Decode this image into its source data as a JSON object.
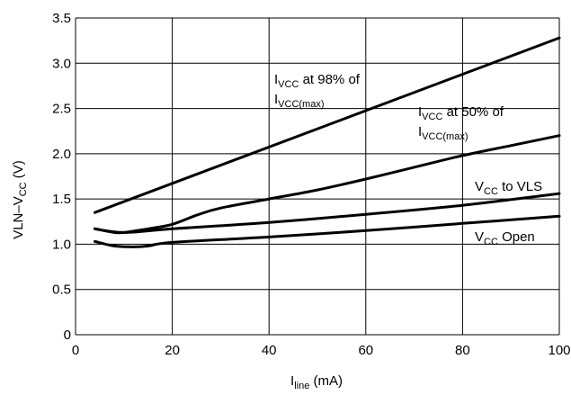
{
  "chart_data": {
    "type": "line",
    "xlabel": {
      "main": "I",
      "sub": "line",
      "rest": " (mA)"
    },
    "ylabel": {
      "main": "VLN–V",
      "sub": "CC",
      "rest": " (V)"
    },
    "xlim": [
      0,
      100
    ],
    "ylim": [
      0,
      3.5
    ],
    "x_ticks": [
      0,
      20,
      40,
      60,
      80,
      100
    ],
    "x_tick_labels": [
      "0",
      "20",
      "40",
      "60",
      "80",
      "100"
    ],
    "y_ticks": [
      0,
      0.5,
      1.0,
      1.5,
      2.0,
      2.5,
      3.0,
      3.5
    ],
    "y_tick_labels": [
      "0",
      "0.5",
      "1.0",
      "1.5",
      "2.0",
      "2.5",
      "3.0",
      "3.5"
    ],
    "grid": true,
    "series": [
      {
        "name": "I_VCC at 98% of I_VCC(max)",
        "x": [
          4,
          100
        ],
        "y": [
          1.35,
          3.28
        ]
      },
      {
        "name": "I_VCC at 50% of I_VCC(max)",
        "x": [
          4,
          8,
          10,
          15,
          20,
          25,
          30,
          40,
          50,
          60,
          70,
          80,
          90,
          100
        ],
        "y": [
          1.17,
          1.13,
          1.13,
          1.17,
          1.22,
          1.32,
          1.4,
          1.5,
          1.6,
          1.72,
          1.85,
          1.98,
          2.09,
          2.2
        ]
      },
      {
        "name": "V_CC to VLS",
        "x": [
          4,
          10,
          20,
          40,
          60,
          80,
          100
        ],
        "y": [
          1.17,
          1.13,
          1.17,
          1.24,
          1.33,
          1.43,
          1.56
        ]
      },
      {
        "name": "V_CC Open",
        "x": [
          4,
          8,
          12,
          15,
          20,
          40,
          60,
          80,
          100
        ],
        "y": [
          1.03,
          0.98,
          0.97,
          0.98,
          1.02,
          1.08,
          1.15,
          1.23,
          1.31
        ]
      }
    ],
    "annotations": [
      {
        "lines": [
          {
            "main": "I",
            "sub": "VCC",
            "rest": " at 98% of"
          },
          {
            "main": "I",
            "sub": "VCC(max)",
            "rest": ""
          }
        ]
      },
      {
        "lines": [
          {
            "main": "I",
            "sub": "VCC",
            "rest": " at 50% of"
          },
          {
            "main": "I",
            "sub": "VCC(max)",
            "rest": ""
          }
        ]
      },
      {
        "lines": [
          {
            "main": "V",
            "sub": "CC",
            "rest": " to VLS"
          }
        ]
      },
      {
        "lines": [
          {
            "main": "V",
            "sub": "CC",
            "rest": " Open"
          }
        ]
      }
    ]
  }
}
